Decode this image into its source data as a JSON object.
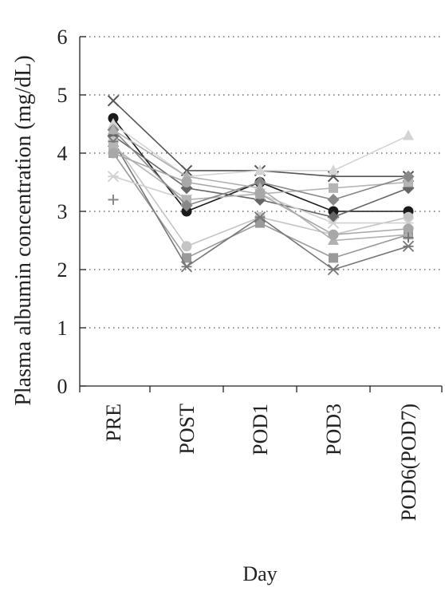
{
  "chart_data": {
    "type": "line",
    "title": "",
    "xlabel": "Day",
    "ylabel": "Plasma albumin concentration (mg/dL)",
    "categories": [
      "PRE",
      "POST",
      "POD1",
      "POD3",
      "POD6(POD7)"
    ],
    "ylim": [
      0,
      6
    ],
    "yticks": [
      0,
      1,
      2,
      3,
      4,
      5,
      6
    ],
    "grid": "horizontal dotted",
    "legend": "none",
    "series": [
      {
        "marker": "circle",
        "color": "#1a1a1a",
        "values": [
          4.6,
          3.0,
          3.5,
          3.0,
          3.0
        ]
      },
      {
        "marker": "x",
        "color": "#555555",
        "values": [
          4.9,
          3.7,
          3.7,
          3.6,
          3.6
        ]
      },
      {
        "marker": "diamond",
        "color": "#666666",
        "values": [
          4.3,
          3.4,
          3.2,
          2.9,
          3.4
        ]
      },
      {
        "marker": "triangle",
        "color": "#d4d4d4",
        "values": [
          4.5,
          3.6,
          3.7,
          3.7,
          4.3
        ]
      },
      {
        "marker": "circle",
        "color": "#c4c4c4",
        "values": [
          4.2,
          2.4,
          2.9,
          2.6,
          2.9
        ]
      },
      {
        "marker": "square",
        "color": "#9a9a9a",
        "values": [
          4.0,
          2.2,
          2.8,
          2.2,
          2.6
        ]
      },
      {
        "marker": "star",
        "color": "#777777",
        "values": [
          4.2,
          2.05,
          2.9,
          2.0,
          2.4
        ]
      },
      {
        "marker": "star",
        "color": "#d0d0d0",
        "values": [
          3.6,
          3.2,
          3.3,
          2.8,
          2.8
        ]
      },
      {
        "marker": "square",
        "color": "#b5b5b5",
        "values": [
          4.1,
          3.2,
          3.3,
          3.4,
          3.5
        ]
      },
      {
        "marker": "diamond",
        "color": "#888888",
        "values": [
          4.4,
          3.1,
          3.5,
          3.2,
          3.6
        ]
      },
      {
        "marker": "triangle",
        "color": "#b0b0b0",
        "values": [
          4.4,
          3.6,
          3.4,
          2.5,
          2.6
        ]
      },
      {
        "marker": "circle",
        "color": "#a8a8a8",
        "values": [
          4.0,
          3.5,
          3.3,
          2.6,
          2.7
        ]
      },
      {
        "marker": "plus",
        "color": "#888888",
        "values": [
          3.2,
          null,
          null,
          null,
          null
        ]
      },
      {
        "marker": "plus",
        "color": "#777777",
        "values": [
          null,
          null,
          null,
          null,
          2.55
        ]
      }
    ]
  }
}
